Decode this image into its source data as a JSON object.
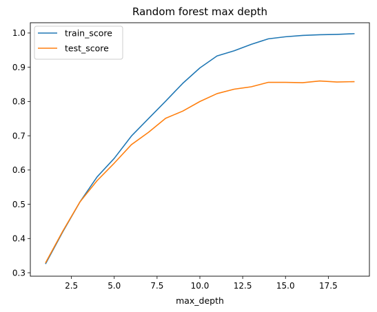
{
  "chart_data": {
    "type": "line",
    "title": "Random forest max depth",
    "xlabel": "max_depth",
    "ylabel": "",
    "x": [
      1,
      2,
      3,
      4,
      5,
      6,
      7,
      8,
      9,
      10,
      11,
      12,
      13,
      14,
      15,
      16,
      17,
      18,
      19
    ],
    "xlim": [
      0.1,
      19.9
    ],
    "ylim": [
      0.29,
      1.03
    ],
    "xticks": [
      2.5,
      5.0,
      7.5,
      10.0,
      12.5,
      15.0,
      17.5
    ],
    "xtick_labels": [
      "2.5",
      "5.0",
      "7.5",
      "10.0",
      "12.5",
      "15.0",
      "17.5"
    ],
    "yticks": [
      0.3,
      0.4,
      0.5,
      0.6,
      0.7,
      0.8,
      0.9,
      1.0
    ],
    "ytick_labels": [
      "0.3",
      "0.4",
      "0.5",
      "0.6",
      "0.7",
      "0.8",
      "0.9",
      "1.0"
    ],
    "grid": false,
    "legend_position": "top-left",
    "series": [
      {
        "name": "train_score",
        "color": "#1f77b4",
        "values": [
          0.327,
          0.42,
          0.507,
          0.58,
          0.634,
          0.699,
          0.75,
          0.801,
          0.853,
          0.898,
          0.933,
          0.948,
          0.967,
          0.983,
          0.989,
          0.993,
          0.995,
          0.996,
          0.998
        ]
      },
      {
        "name": "test_score",
        "color": "#ff7f0e",
        "values": [
          0.33,
          0.422,
          0.507,
          0.569,
          0.62,
          0.674,
          0.71,
          0.751,
          0.772,
          0.8,
          0.823,
          0.836,
          0.843,
          0.856,
          0.856,
          0.855,
          0.86,
          0.857,
          0.858
        ]
      }
    ]
  }
}
